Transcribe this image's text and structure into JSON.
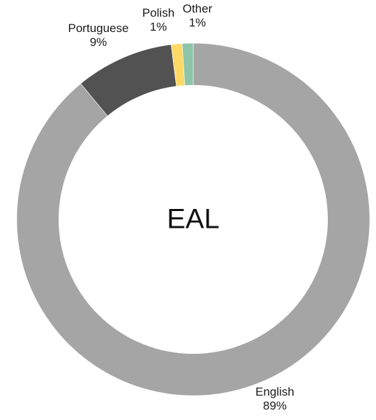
{
  "chart_data": {
    "type": "pie",
    "variant": "donut",
    "center_label": "EAL",
    "start": "12 o'clock",
    "direction": "clockwise",
    "slices": [
      {
        "name": "English",
        "value": 89,
        "label": "89%",
        "color": "#a5a5a5"
      },
      {
        "name": "Portuguese",
        "value": 9,
        "label": "9%",
        "color": "#525252"
      },
      {
        "name": "Polish",
        "value": 1,
        "label": "1%",
        "color": "#ffd966"
      },
      {
        "name": "Other",
        "value": 1,
        "label": "1%",
        "color": "#8ec5a8"
      }
    ],
    "legend": "none",
    "grid": false
  }
}
